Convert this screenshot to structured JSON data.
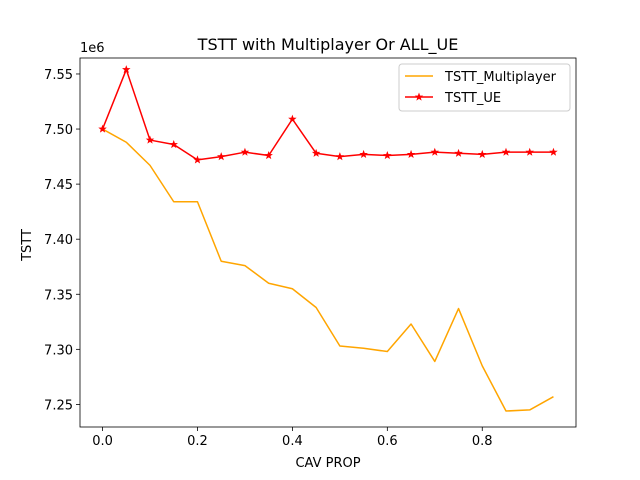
{
  "chart_data": {
    "type": "line",
    "title": "TSTT with Multiplayer Or ALL_UE",
    "xlabel": "CAV PROP",
    "ylabel": "TSTT",
    "y_offset_label": "1e6",
    "xlim": [
      -0.0475,
      0.9975
    ],
    "ylim": [
      7.2295,
      7.5645
    ],
    "xticks": [
      0.0,
      0.2,
      0.4,
      0.6,
      0.8
    ],
    "xtick_labels": [
      "0.0",
      "0.2",
      "0.4",
      "0.6",
      "0.8"
    ],
    "yticks": [
      7.25,
      7.3,
      7.35,
      7.4,
      7.45,
      7.5,
      7.55
    ],
    "ytick_labels": [
      "7.25",
      "7.30",
      "7.35",
      "7.40",
      "7.45",
      "7.50",
      "7.55"
    ],
    "legend_position": "top-right",
    "grid": false,
    "x": [
      0.0,
      0.05,
      0.1,
      0.15,
      0.2,
      0.25,
      0.3,
      0.35,
      0.4,
      0.45,
      0.5,
      0.55,
      0.6,
      0.65,
      0.7,
      0.75,
      0.8,
      0.85,
      0.9,
      0.95
    ],
    "series": [
      {
        "name": "TSTT_Multiplayer",
        "color": "#FFA500",
        "marker": "none",
        "values": [
          7.5,
          7.488,
          7.467,
          7.434,
          7.434,
          7.38,
          7.376,
          7.36,
          7.355,
          7.338,
          7.303,
          7.301,
          7.298,
          7.323,
          7.289,
          7.337,
          7.285,
          7.244,
          7.245,
          7.257
        ]
      },
      {
        "name": "TSTT_UE",
        "color": "#FF0000",
        "marker": "star",
        "values": [
          7.5,
          7.554,
          7.49,
          7.486,
          7.472,
          7.475,
          7.479,
          7.476,
          7.509,
          7.478,
          7.475,
          7.477,
          7.476,
          7.477,
          7.479,
          7.478,
          7.477,
          7.479,
          7.479,
          7.479
        ]
      }
    ]
  }
}
